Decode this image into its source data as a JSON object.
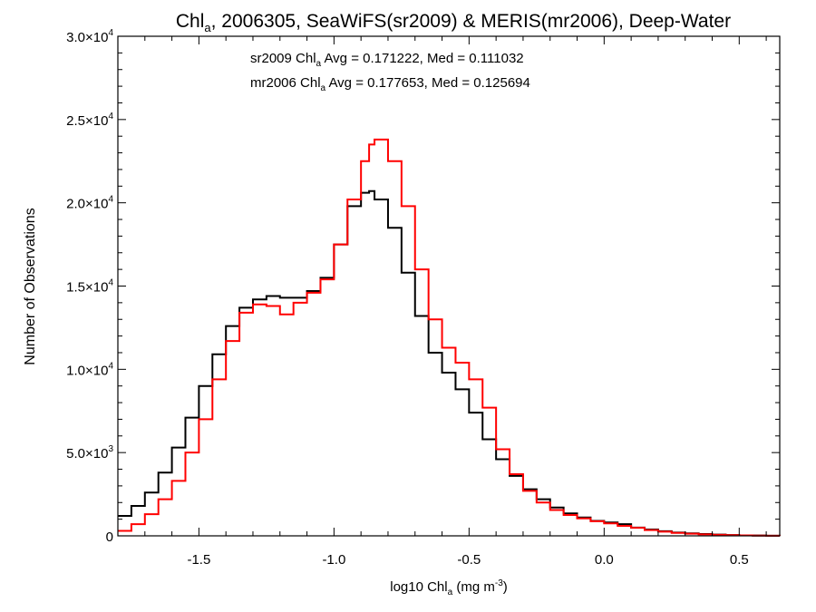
{
  "chart_data": {
    "type": "line",
    "title": {
      "pre": "Chl",
      "sub": "a",
      "post": ", 2006305, SeaWiFS(sr2009) & MERIS(mr2006), Deep-Water"
    },
    "xlabel": {
      "pre": "log10 Chl",
      "sub": "a",
      "mid": " (mg m",
      "sup": "-3",
      "post": ")"
    },
    "ylabel": "Number of Observations",
    "xlim": [
      -1.8,
      0.65
    ],
    "ylim": [
      0,
      30000
    ],
    "x_ticks": [
      {
        "value": -1.5,
        "label": "-1.5"
      },
      {
        "value": -1.0,
        "label": "-1.0"
      },
      {
        "value": -0.5,
        "label": "-0.5"
      },
      {
        "value": 0.0,
        "label": "0.0"
      },
      {
        "value": 0.5,
        "label": "0.5"
      }
    ],
    "y_ticks": [
      {
        "value": 0,
        "mant": "0",
        "exp": ""
      },
      {
        "value": 5000,
        "mant": "5.0×10",
        "exp": "3"
      },
      {
        "value": 10000,
        "mant": "1.0×10",
        "exp": "4"
      },
      {
        "value": 15000,
        "mant": "1.5×10",
        "exp": "4"
      },
      {
        "value": 20000,
        "mant": "2.0×10",
        "exp": "4"
      },
      {
        "value": 25000,
        "mant": "2.5×10",
        "exp": "4"
      },
      {
        "value": 30000,
        "mant": "3.0×10",
        "exp": "4"
      }
    ],
    "annotations": [
      {
        "pre": "sr2009 Chl",
        "sub": "a",
        "post": " Avg = 0.171222, Med = 0.111032",
        "color": "#000000"
      },
      {
        "pre": "mr2006 Chl",
        "sub": "a",
        "post": " Avg = 0.177653, Med = 0.125694",
        "color": "#ff0000"
      }
    ],
    "series": [
      {
        "color": "#000000",
        "x": [
          -1.8,
          -1.75,
          -1.7,
          -1.65,
          -1.6,
          -1.55,
          -1.5,
          -1.45,
          -1.4,
          -1.35,
          -1.3,
          -1.25,
          -1.2,
          -1.15,
          -1.1,
          -1.05,
          -1.0,
          -0.95,
          -0.9,
          -0.87,
          -0.85,
          -0.8,
          -0.75,
          -0.7,
          -0.65,
          -0.6,
          -0.55,
          -0.5,
          -0.45,
          -0.4,
          -0.35,
          -0.3,
          -0.25,
          -0.2,
          -0.15,
          -0.1,
          -0.05,
          0.0,
          0.05,
          0.1,
          0.15,
          0.2,
          0.25,
          0.3,
          0.35,
          0.4,
          0.45,
          0.5,
          0.55,
          0.6,
          0.65
        ],
        "y": [
          1200,
          1800,
          2600,
          3800,
          5300,
          7100,
          9000,
          10900,
          12600,
          13700,
          14200,
          14400,
          14300,
          14300,
          14700,
          15500,
          17500,
          19800,
          20600,
          20700,
          20200,
          18500,
          15800,
          13200,
          11000,
          9800,
          8800,
          7400,
          5800,
          4600,
          3600,
          2800,
          2200,
          1700,
          1350,
          1100,
          900,
          800,
          700,
          500,
          380,
          280,
          200,
          150,
          110,
          75,
          50,
          30,
          20,
          10,
          5
        ]
      },
      {
        "color": "#ff0000",
        "x": [
          -1.8,
          -1.75,
          -1.7,
          -1.65,
          -1.6,
          -1.55,
          -1.5,
          -1.45,
          -1.4,
          -1.35,
          -1.3,
          -1.25,
          -1.2,
          -1.15,
          -1.1,
          -1.05,
          -1.0,
          -0.95,
          -0.9,
          -0.87,
          -0.85,
          -0.8,
          -0.75,
          -0.7,
          -0.65,
          -0.6,
          -0.55,
          -0.5,
          -0.45,
          -0.4,
          -0.35,
          -0.3,
          -0.25,
          -0.2,
          -0.15,
          -0.1,
          -0.05,
          0.0,
          0.05,
          0.1,
          0.15,
          0.2,
          0.25,
          0.3,
          0.35,
          0.4,
          0.45,
          0.5,
          0.55,
          0.6,
          0.65
        ],
        "y": [
          300,
          700,
          1300,
          2200,
          3300,
          5000,
          7000,
          9400,
          11700,
          13400,
          13900,
          13800,
          13300,
          14000,
          14600,
          15400,
          17500,
          20200,
          22500,
          23500,
          23800,
          22500,
          19800,
          16000,
          13000,
          11300,
          10400,
          9400,
          7700,
          5200,
          3700,
          2700,
          2000,
          1550,
          1250,
          1050,
          880,
          750,
          600,
          480,
          350,
          250,
          180,
          130,
          90,
          60,
          40,
          25,
          15,
          8,
          4
        ]
      }
    ]
  }
}
